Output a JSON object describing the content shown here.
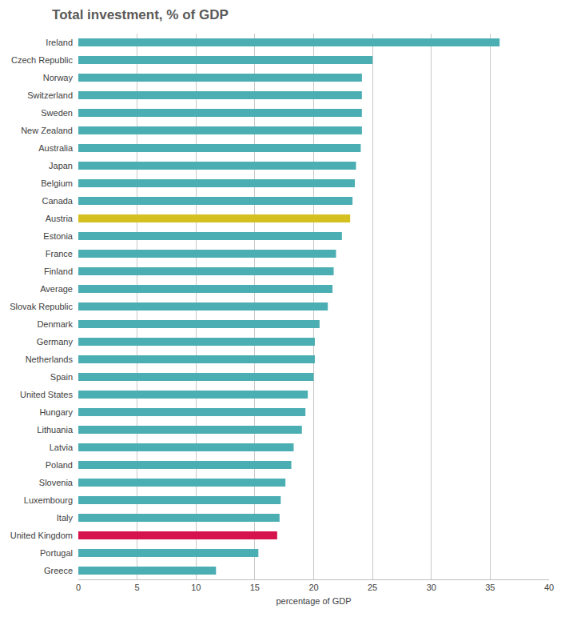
{
  "chart_data": {
    "type": "bar",
    "orientation": "horizontal",
    "title": "Total investment, % of GDP",
    "x_label": "percentage of GDP",
    "categories": [
      "Ireland",
      "Czech Republic",
      "Norway",
      "Switzerland",
      "Sweden",
      "New Zealand",
      "Australia",
      "Japan",
      "Belgium",
      "Canada",
      "Austria",
      "Estonia",
      "France",
      "Finland",
      "Average",
      "Slovak Republic",
      "Denmark",
      "Germany",
      "Netherlands",
      "Spain",
      "United States",
      "Hungary",
      "Lithuania",
      "Latvia",
      "Poland",
      "Slovenia",
      "Luxembourg",
      "Italy",
      "United Kingdom",
      "Portugal",
      "Greece"
    ],
    "values": [
      35.8,
      25.0,
      24.1,
      24.1,
      24.1,
      24.1,
      24.0,
      23.6,
      23.5,
      23.3,
      23.1,
      22.4,
      21.9,
      21.7,
      21.6,
      21.2,
      20.5,
      20.1,
      20.1,
      20.0,
      19.5,
      19.3,
      19.0,
      18.3,
      18.1,
      17.6,
      17.2,
      17.1,
      16.9,
      15.3,
      11.7
    ],
    "colors": [
      "#4BAEB2",
      "#4BAEB2",
      "#4BAEB2",
      "#4BAEB2",
      "#4BAEB2",
      "#4BAEB2",
      "#4BAEB2",
      "#4BAEB2",
      "#4BAEB2",
      "#4BAEB2",
      "#D4C020",
      "#4BAEB2",
      "#4BAEB2",
      "#4BAEB2",
      "#4BAEB2",
      "#4BAEB2",
      "#4BAEB2",
      "#4BAEB2",
      "#4BAEB2",
      "#4BAEB2",
      "#4BAEB2",
      "#4BAEB2",
      "#4BAEB2",
      "#4BAEB2",
      "#4BAEB2",
      "#4BAEB2",
      "#4BAEB2",
      "#4BAEB2",
      "#D6134D",
      "#4BAEB2",
      "#4BAEB2"
    ],
    "xlim": [
      0,
      40
    ],
    "xticks": [
      0,
      5,
      10,
      15,
      20,
      25,
      30,
      35,
      40
    ],
    "grid": true
  }
}
